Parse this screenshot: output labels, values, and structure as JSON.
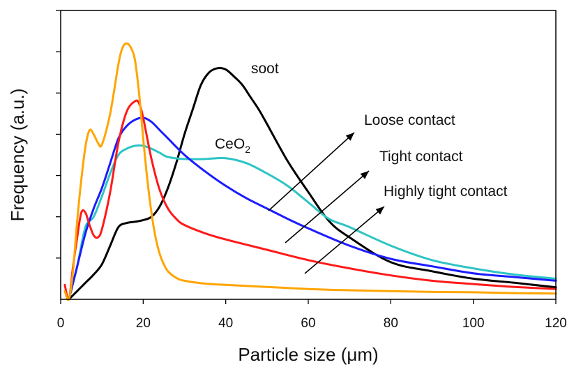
{
  "chart_data": {
    "type": "line",
    "xlabel": "Particle size (μm)",
    "ylabel": "Frequency (a.u.)",
    "xlim": [
      0,
      120
    ],
    "ylim": [
      0,
      7
    ],
    "xticks": [
      0,
      20,
      40,
      60,
      80,
      100,
      120
    ],
    "yticks_labeled": false,
    "grid": false,
    "series": [
      {
        "name": "",
        "color": "#000000",
        "x": [
          2,
          4,
          6,
          8,
          10,
          12,
          14,
          16,
          18,
          20,
          22,
          24,
          26,
          28,
          30,
          32,
          34,
          36,
          38,
          40,
          42,
          44,
          46,
          48,
          50,
          55,
          60,
          65,
          70,
          80,
          90,
          100,
          110,
          120
        ],
        "y": [
          0.0,
          0.2,
          0.4,
          0.6,
          0.85,
          1.3,
          1.75,
          1.85,
          1.88,
          1.92,
          2.0,
          2.25,
          2.7,
          3.3,
          4.0,
          4.6,
          5.2,
          5.5,
          5.6,
          5.57,
          5.4,
          5.2,
          4.9,
          4.6,
          4.25,
          3.35,
          2.6,
          1.9,
          1.5,
          0.9,
          0.68,
          0.5,
          0.4,
          0.29
        ]
      },
      {
        "name": "",
        "color": "#2ec4c4",
        "x": [
          2,
          4,
          6,
          8,
          10,
          12,
          14,
          16,
          18,
          20,
          22,
          24,
          26,
          30,
          35,
          40,
          45,
          50,
          55,
          60,
          65,
          70,
          80,
          90,
          100,
          110,
          120
        ],
        "y": [
          0.0,
          0.8,
          1.75,
          2.0,
          2.5,
          3.05,
          3.5,
          3.65,
          3.72,
          3.72,
          3.65,
          3.55,
          3.45,
          3.4,
          3.4,
          3.42,
          3.3,
          3.05,
          2.75,
          2.35,
          1.95,
          1.75,
          1.3,
          0.95,
          0.75,
          0.6,
          0.5
        ]
      },
      {
        "name": "",
        "color": "#1c1cff",
        "x": [
          2,
          4,
          6,
          8,
          10,
          12,
          14,
          16,
          18,
          20,
          22,
          24,
          26,
          30,
          35,
          40,
          45,
          50,
          55,
          60,
          70,
          80,
          90,
          100,
          110,
          120
        ],
        "y": [
          0.0,
          0.8,
          1.6,
          2.2,
          2.7,
          3.3,
          3.9,
          4.2,
          4.35,
          4.4,
          4.3,
          4.1,
          3.9,
          3.5,
          3.1,
          2.75,
          2.45,
          2.2,
          1.95,
          1.72,
          1.3,
          0.98,
          0.8,
          0.63,
          0.54,
          0.45
        ]
      },
      {
        "name": "",
        "color": "#ff1a1a",
        "x": [
          1,
          2,
          3,
          4,
          5,
          6,
          7,
          8,
          9,
          10,
          12,
          14,
          16,
          18,
          19,
          20,
          22,
          24,
          26,
          28,
          30,
          35,
          40,
          50,
          60,
          70,
          80,
          90,
          100,
          110,
          120
        ],
        "y": [
          0.35,
          0.0,
          0.8,
          1.5,
          2.1,
          2.1,
          1.8,
          1.55,
          1.5,
          1.7,
          2.6,
          3.8,
          4.55,
          4.8,
          4.75,
          4.4,
          3.4,
          2.65,
          2.2,
          1.95,
          1.8,
          1.6,
          1.45,
          1.2,
          0.95,
          0.75,
          0.58,
          0.45,
          0.37,
          0.3,
          0.25
        ]
      },
      {
        "name": "",
        "color": "#ffa500",
        "x": [
          1,
          2,
          3,
          4,
          5,
          6,
          7,
          8,
          9,
          10,
          12,
          14,
          15,
          16,
          17,
          18,
          19,
          20,
          21,
          22,
          23,
          24,
          25,
          26,
          28,
          30,
          35,
          40,
          50,
          60,
          70,
          80,
          90,
          100,
          110,
          120
        ],
        "y": [
          0.2,
          0.0,
          0.7,
          1.9,
          2.9,
          3.7,
          4.1,
          4.0,
          3.8,
          3.75,
          4.5,
          5.7,
          6.1,
          6.2,
          6.1,
          5.8,
          5.0,
          3.9,
          2.9,
          2.1,
          1.5,
          1.1,
          0.85,
          0.68,
          0.52,
          0.45,
          0.38,
          0.35,
          0.3,
          0.25,
          0.22,
          0.2,
          0.18,
          0.17,
          0.15,
          0.14
        ]
      }
    ],
    "annotations": [
      {
        "id": "soot",
        "text": "soot"
      },
      {
        "id": "ceo2",
        "text": "CeO",
        "subscript": "2"
      },
      {
        "id": "loose",
        "text": "Loose contact"
      },
      {
        "id": "tight",
        "text": "Tight contact"
      },
      {
        "id": "highly",
        "text": "Highly tight contact"
      }
    ]
  }
}
